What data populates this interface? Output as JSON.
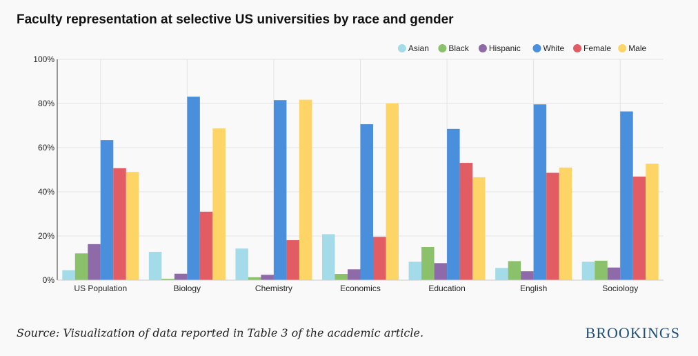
{
  "chart_data": {
    "type": "bar",
    "title": "Faculty representation at selective US universities by race and gender",
    "categories": [
      "US Population",
      "Biology",
      "Chemistry",
      "Economics",
      "Education",
      "English",
      "Sociology"
    ],
    "series": [
      {
        "name": "Asian",
        "color": "#a3dbe8",
        "values": [
          4.5,
          12.8,
          14.3,
          20.8,
          8.3,
          5.5,
          8.3
        ]
      },
      {
        "name": "Black",
        "color": "#8cc16b",
        "values": [
          12.1,
          0.6,
          1.3,
          2.8,
          15.0,
          8.6,
          8.8
        ]
      },
      {
        "name": "Hispanic",
        "color": "#8e6aa8",
        "values": [
          16.3,
          2.9,
          2.4,
          4.9,
          7.7,
          4.0,
          5.7
        ]
      },
      {
        "name": "White",
        "color": "#4a8fdc",
        "values": [
          63.4,
          83.1,
          81.5,
          70.6,
          68.5,
          79.6,
          76.4
        ]
      },
      {
        "name": "Female",
        "color": "#e15c63",
        "values": [
          50.7,
          31.0,
          18.1,
          19.6,
          53.1,
          48.6,
          46.9
        ]
      },
      {
        "name": "Male",
        "color": "#fdd567",
        "values": [
          49.0,
          68.7,
          81.7,
          80.1,
          46.6,
          51.0,
          52.7
        ]
      }
    ],
    "yticks": [
      "0%",
      "20%",
      "40%",
      "60%",
      "80%",
      "100%"
    ],
    "ylim": [
      0,
      100
    ],
    "xlabel": "",
    "ylabel": "",
    "legend_position": "top-right",
    "grid": true
  },
  "footer": {
    "source": "Source: Visualization of data reported in Table 3 of the academic article.",
    "brand": "BROOKINGS"
  }
}
